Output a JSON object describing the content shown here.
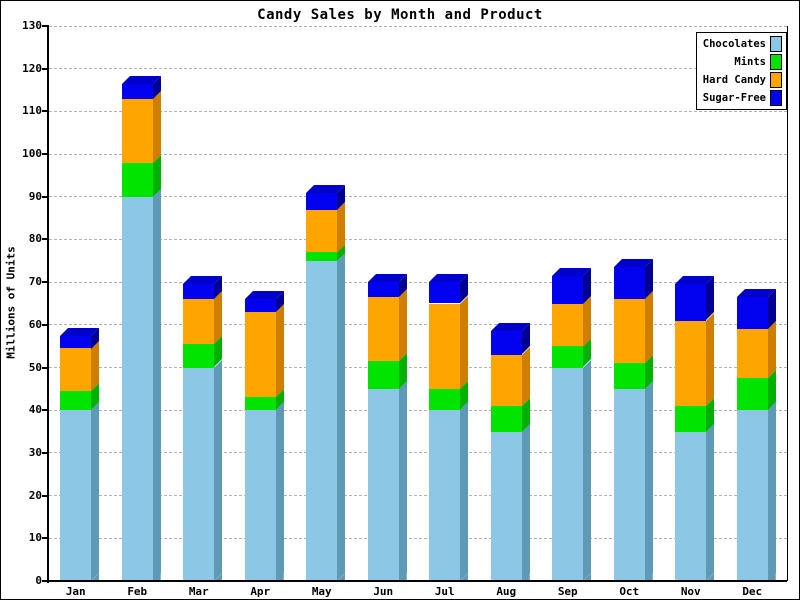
{
  "chart_data": {
    "type": "bar",
    "stacked": true,
    "threed": true,
    "title": "Candy Sales by Month and Product",
    "xlabel": "",
    "ylabel": "Millions of Units",
    "ylim": [
      0,
      130
    ],
    "ytick_step": 10,
    "grid": "dashed-horizontal",
    "legend_position": "top-right",
    "categories": [
      "Jan",
      "Feb",
      "Mar",
      "Apr",
      "May",
      "Jun",
      "Jul",
      "Aug",
      "Sep",
      "Oct",
      "Nov",
      "Dec"
    ],
    "series": [
      {
        "name": "Chocolates",
        "color": "#8cc7e5",
        "side_color": "#5e99b5",
        "values": [
          40,
          90,
          50,
          40,
          75,
          45,
          40,
          35,
          50,
          45,
          35,
          40
        ]
      },
      {
        "name": "Mints",
        "color": "#00e400",
        "side_color": "#00b004",
        "values": [
          4.5,
          8,
          5.5,
          3,
          2,
          6.5,
          5,
          6,
          5,
          6,
          6,
          7.5
        ]
      },
      {
        "name": "Hard Candy",
        "color": "#ffa500",
        "side_color": "#ce7e00",
        "values": [
          10,
          15,
          10.5,
          20,
          10,
          15,
          20,
          12,
          10,
          15,
          20,
          11.5
        ]
      },
      {
        "name": "Sugar-Free",
        "color": "#0202f0",
        "side_color": "#010190",
        "top_color": "#0101cc",
        "values": [
          3,
          3.5,
          3.5,
          3,
          4,
          3.5,
          5,
          5.5,
          6.5,
          7.5,
          8.5,
          7.5
        ]
      }
    ]
  },
  "legend": {
    "entries": [
      "Chocolates",
      "Mints",
      "Hard Candy",
      "Sugar-Free"
    ]
  },
  "colors": {
    "gridline": "#b3b3b3",
    "axis": "#000000",
    "background": "#ffffff"
  }
}
